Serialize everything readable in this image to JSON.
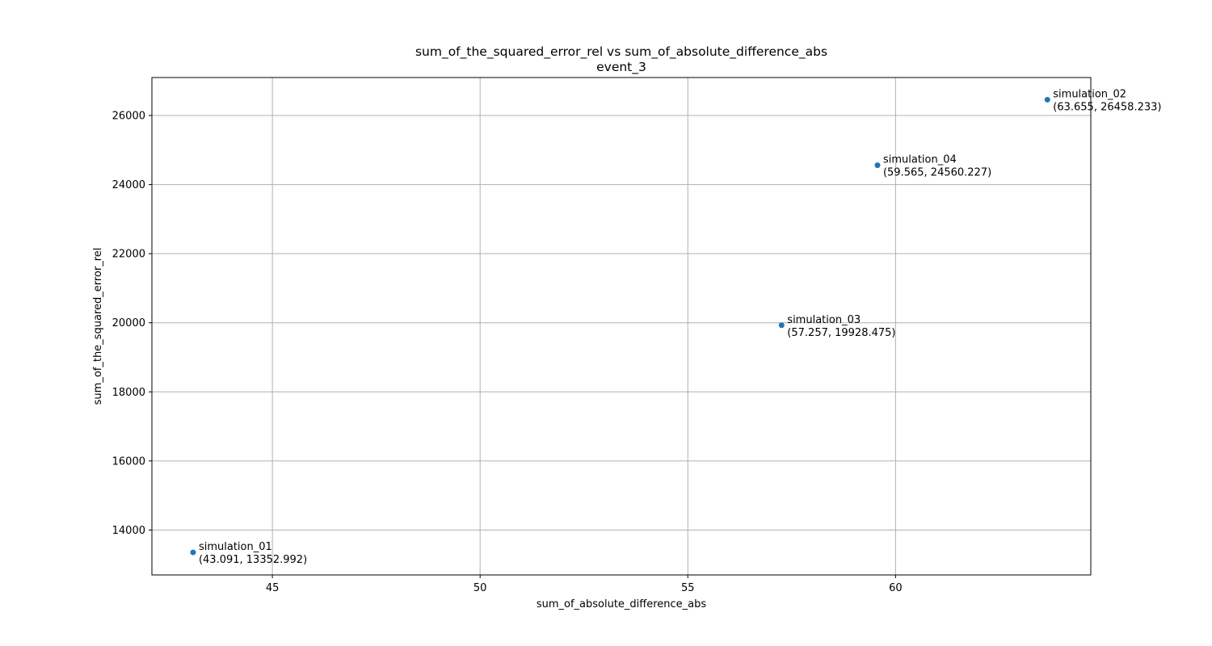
{
  "chart_data": {
    "type": "scatter",
    "title": "sum_of_the_squared_error_rel vs sum_of_absolute_difference_abs",
    "subtitle": "event_3",
    "xlabel": "sum_of_absolute_difference_abs",
    "ylabel": "sum_of_the_squared_error_rel",
    "xlim": [
      42.1,
      64.7
    ],
    "ylim": [
      12700,
      27100
    ],
    "xticks": [
      45,
      50,
      55,
      60
    ],
    "xtick_labels": [
      "45",
      "50",
      "55",
      "60"
    ],
    "yticks": [
      14000,
      16000,
      18000,
      20000,
      22000,
      24000,
      26000
    ],
    "ytick_labels": [
      "14000",
      "16000",
      "18000",
      "20000",
      "22000",
      "24000",
      "26000"
    ],
    "grid": true,
    "marker_color": "#1f77b4",
    "points": [
      {
        "name": "simulation_01",
        "x": 43.091,
        "y": 13352.992,
        "coord_label": "(43.091, 13352.992)"
      },
      {
        "name": "simulation_02",
        "x": 63.655,
        "y": 26458.233,
        "coord_label": "(63.655, 26458.233)"
      },
      {
        "name": "simulation_03",
        "x": 57.257,
        "y": 19928.475,
        "coord_label": "(57.257, 19928.475)"
      },
      {
        "name": "simulation_04",
        "x": 59.565,
        "y": 24560.227,
        "coord_label": "(59.565, 24560.227)"
      }
    ]
  }
}
